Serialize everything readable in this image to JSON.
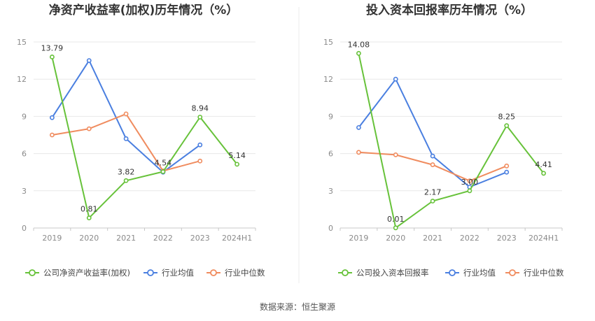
{
  "source_label": "数据来源：恒生聚源",
  "colors": {
    "company": "#67c23a",
    "avg": "#4a7fe0",
    "median": "#f08c5f"
  },
  "chart_data": [
    {
      "type": "line",
      "title": "净资产收益率(加权)历年情况（%）",
      "categories": [
        "2019",
        "2020",
        "2021",
        "2022",
        "2023",
        "2024H1"
      ],
      "ylim": [
        0,
        15
      ],
      "yticks": [
        "0",
        "3",
        "6",
        "9",
        "12",
        "15"
      ],
      "grid": true,
      "legend_position": "bottom",
      "series": [
        {
          "name": "公司净资产收益率(加权)",
          "key": "company",
          "values": [
            13.79,
            0.81,
            3.82,
            4.54,
            8.94,
            5.14
          ],
          "labels": [
            "13.79",
            "0.81",
            "3.82",
            "4.54",
            "8.94",
            "5.14"
          ]
        },
        {
          "name": "行业均值",
          "key": "avg",
          "values": [
            8.9,
            13.5,
            7.2,
            4.5,
            6.7,
            null
          ]
        },
        {
          "name": "行业中位数",
          "key": "median",
          "values": [
            7.5,
            8.0,
            9.2,
            4.6,
            5.4,
            null
          ]
        }
      ]
    },
    {
      "type": "line",
      "title": "投入资本回报率历年情况（%）",
      "categories": [
        "2019",
        "2020",
        "2021",
        "2022",
        "2023",
        "2024H1"
      ],
      "ylim": [
        0,
        15
      ],
      "yticks": [
        "0",
        "3",
        "6",
        "9",
        "12",
        "15"
      ],
      "grid": true,
      "legend_position": "bottom",
      "series": [
        {
          "name": "公司投入资本回报率",
          "key": "company",
          "values": [
            14.08,
            0.01,
            2.17,
            3.0,
            8.25,
            4.41
          ],
          "labels": [
            "14.08",
            "0.01",
            "2.17",
            "3.00",
            "8.25",
            "4.41"
          ]
        },
        {
          "name": "行业均值",
          "key": "avg",
          "values": [
            8.1,
            12.0,
            5.8,
            3.3,
            4.5,
            null
          ]
        },
        {
          "name": "行业中位数",
          "key": "median",
          "values": [
            6.1,
            5.9,
            5.1,
            3.8,
            5.0,
            null
          ]
        }
      ]
    }
  ]
}
